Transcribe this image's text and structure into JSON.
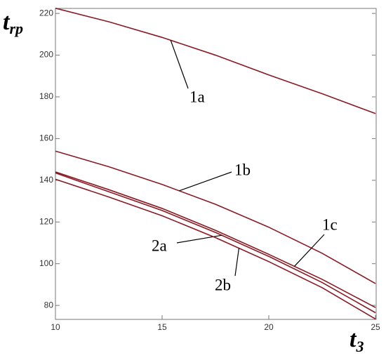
{
  "chart_data": {
    "type": "line",
    "y_label": "t",
    "y_label_sub": "rp",
    "x_label": "t",
    "x_label_sub": "3",
    "x": [
      10,
      12.5,
      15,
      17.5,
      20,
      22.5,
      25
    ],
    "series": [
      {
        "name": "1a",
        "color": "#8b1a24",
        "values": [
          222.5,
          216,
          208.5,
          200,
          190.5,
          181.5,
          172
        ]
      },
      {
        "name": "1b",
        "color": "#8b1a24",
        "values": [
          154,
          146.5,
          138,
          128.5,
          117.5,
          105,
          90.5
        ]
      },
      {
        "name": "1c",
        "color": "#8b1a24",
        "values": [
          144,
          135.5,
          126.5,
          116,
          104.5,
          92.5,
          79
        ]
      },
      {
        "name": "2a",
        "color": "#8b1a24",
        "values": [
          143.5,
          134.5,
          125.5,
          115,
          103.5,
          91,
          76.5
        ]
      },
      {
        "name": "2b",
        "color": "#8b1a24",
        "values": [
          140.5,
          132,
          123,
          112.5,
          101,
          88.5,
          73.5
        ]
      }
    ],
    "xlim": [
      10,
      25
    ],
    "ylim": [
      73.3,
      222.4
    ],
    "xticks": [
      10,
      15,
      20,
      25
    ],
    "yticks": [
      80,
      100,
      120,
      140,
      160,
      180,
      200,
      220
    ]
  }
}
